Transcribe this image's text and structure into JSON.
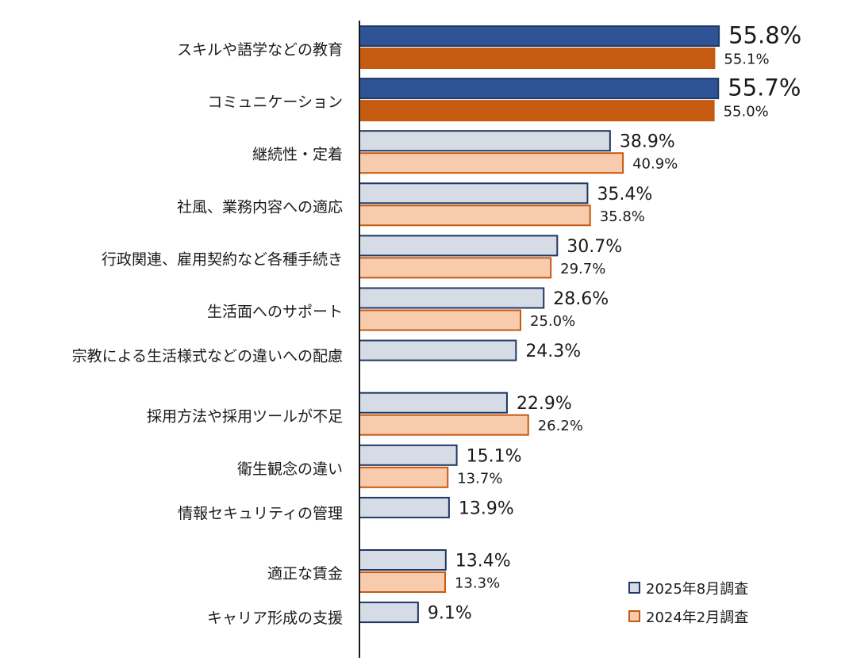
{
  "chart_data": {
    "type": "bar",
    "orientation": "horizontal",
    "categories": [
      "スキルや語学などの教育",
      "コミュニケーション",
      "継続性・定着",
      "社風、業務内容への適応",
      "行政関連、雇用契約など各種手続き",
      "生活面へのサポート",
      "宗教による生活様式などの違いへの配慮",
      "採用方法や採用ツールが不足",
      "衛生観念の違い",
      "情報セキュリティの管理",
      "適正な賃金",
      "キャリア形成の支援"
    ],
    "series": [
      {
        "name": "2025年8月調査",
        "values": [
          55.8,
          55.7,
          38.9,
          35.4,
          30.7,
          28.6,
          24.3,
          22.9,
          15.1,
          13.9,
          13.4,
          9.1
        ],
        "labels": [
          "55.8%",
          "55.7%",
          "38.9%",
          "35.4%",
          "30.7%",
          "28.6%",
          "24.3%",
          "22.9%",
          "15.1%",
          "13.9%",
          "13.4%",
          "9.1%"
        ],
        "fill": "#d6dce5",
        "stroke": "#1f3864",
        "highlight_fill": "#2f5496"
      },
      {
        "name": "2024年2月調査",
        "values": [
          55.1,
          55.0,
          40.9,
          35.8,
          29.7,
          25.0,
          null,
          26.2,
          13.7,
          null,
          13.3,
          null
        ],
        "labels": [
          "55.1%",
          "55.0%",
          "40.9%",
          "35.8%",
          "29.7%",
          "25.0%",
          null,
          "26.2%",
          "13.7%",
          null,
          "13.3%",
          null
        ],
        "fill": "#f8cbad",
        "stroke": "#c55a11",
        "highlight_fill": "#c55a11"
      }
    ],
    "highlight_top": 2,
    "xlim": [
      0,
      60
    ],
    "legend_position": "bottom-right",
    "grid": false
  }
}
